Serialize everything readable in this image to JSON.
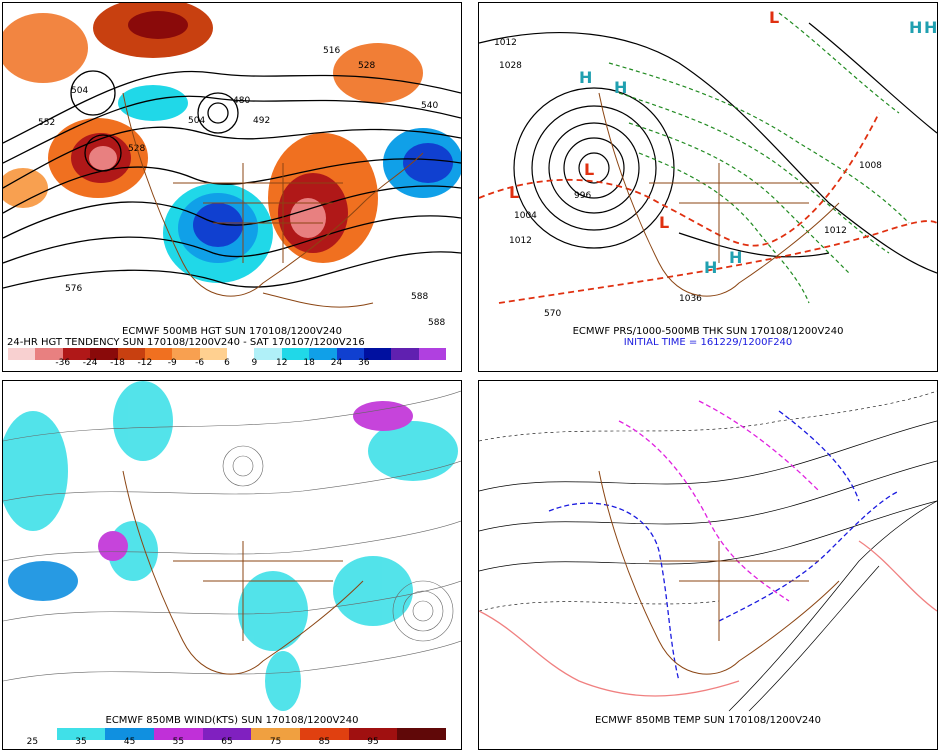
{
  "panels": [
    {
      "id": "hgt500",
      "captions": [
        "ECMWF 500MB HGT SUN 170108/1200V240",
        "24-HR HGT TENDENCY SUN 170108/1200V240 - SAT 170107/1200V216"
      ],
      "contour_labels": [
        "552",
        "528",
        "504",
        "492",
        "480",
        "516",
        "528",
        "540",
        "576",
        "588",
        "588",
        "504"
      ],
      "colorbar": {
        "ticks": [
          "-36",
          "-24",
          "-18",
          "-12",
          "-9",
          "-6",
          "6",
          "9",
          "12",
          "18",
          "24",
          "36"
        ],
        "colors": [
          "#f8d0d0",
          "#e88080",
          "#b01818",
          "#8a0a0a",
          "#c84010",
          "#f07020",
          "#f8a050",
          "#ffd090",
          "#ffffff",
          "#b0f0f8",
          "#20d8e8",
          "#10a0e8",
          "#1040d0",
          "#0010a0",
          "#6020b0",
          "#b040e0"
        ]
      }
    },
    {
      "id": "prs1000",
      "captions": [
        "ECMWF PRS/1000-500MB THK SUN 170108/1200V240",
        "INITIAL TIME = 161229/1200F240"
      ],
      "contour_labels": [
        "1012",
        "1028",
        "996",
        "1004",
        "1012",
        "1036",
        "1012",
        "1008",
        "570"
      ],
      "symbols": [
        "H",
        "H",
        "H",
        "H",
        "L",
        "L",
        "L",
        "L",
        "H",
        "H"
      ]
    },
    {
      "id": "wind850",
      "captions": [
        "ECMWF 850MB WIND(KTS) SUN 170108/1200V240"
      ],
      "colorbar": {
        "ticks": [
          "25",
          "35",
          "45",
          "55",
          "65",
          "75",
          "85",
          "95"
        ],
        "colors": [
          "#ffffff",
          "#40e0e8",
          "#1090e0",
          "#c030d8",
          "#8020c0",
          "#f0a040",
          "#e04010",
          "#a01010",
          "#600808"
        ]
      }
    },
    {
      "id": "temp850",
      "captions": [
        "ECMWF 850MB TEMP SUN 170108/1200V240"
      ]
    }
  ]
}
